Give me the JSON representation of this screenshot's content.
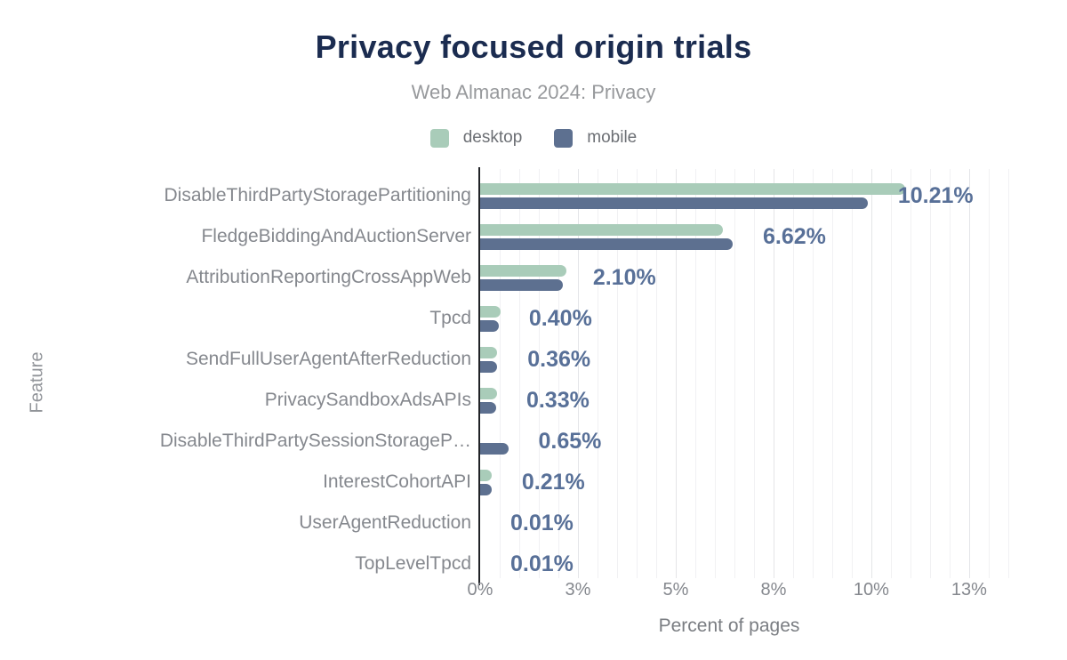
{
  "header": {
    "title": "Privacy focused origin trials",
    "subtitle": "Web Almanac 2024: Privacy"
  },
  "legend": [
    {
      "label": "desktop",
      "color": "#a9ccb9"
    },
    {
      "label": "mobile",
      "color": "#5d7090"
    }
  ],
  "colors": {
    "title": "#1b2c50",
    "subtitle": "#97999c",
    "desktop_bar": "#a9ccb9",
    "mobile_bar": "#5d7090",
    "value_label": "#587098",
    "category_label": "#85888e",
    "axis_line": "#212327",
    "gridline_minor": "#f1f1f3",
    "gridline_major": "#e4e5e8"
  },
  "chart_data": {
    "type": "bar",
    "orientation": "horizontal",
    "title": "Privacy focused origin trials",
    "subtitle": "Web Almanac 2024: Privacy",
    "xlabel": "Percent of pages",
    "ylabel": "Feature",
    "xlim": [
      0,
      14.2
    ],
    "grid": "vertical, minor every 0.52%, major every 2.6%",
    "legend_position": "top-center",
    "x_ticks": [
      {
        "value": 0,
        "label": "0%"
      },
      {
        "value": 2.6,
        "label": "3%"
      },
      {
        "value": 5.2,
        "label": "5%"
      },
      {
        "value": 7.8,
        "label": "8%"
      },
      {
        "value": 10.4,
        "label": "10%"
      },
      {
        "value": 13,
        "label": "13%"
      }
    ],
    "categories": [
      "DisableThirdPartyStoragePartitioning",
      "FledgeBiddingAndAuctionServer",
      "AttributionReportingCrossAppWeb",
      "Tpcd",
      "SendFullUserAgentAfterReduction",
      "PrivacySandboxAdsAPIs",
      "DisableThirdPartySessionStorageP…",
      "InterestCohortAPI",
      "UserAgentReduction",
      "TopLevelTpcd"
    ],
    "series": [
      {
        "name": "desktop",
        "color": "#a9ccb9",
        "values": [
          11.2,
          6.35,
          2.2,
          0.45,
          0.36,
          0.35,
          0,
          0.22,
          0.01,
          0.01
        ]
      },
      {
        "name": "mobile",
        "color": "#5d7090",
        "values": [
          10.21,
          6.62,
          2.1,
          0.4,
          0.36,
          0.33,
          0.65,
          0.21,
          0.01,
          0.01
        ]
      }
    ],
    "value_labels": [
      "10.21%",
      "6.62%",
      "2.10%",
      "0.40%",
      "0.36%",
      "0.33%",
      "0.65%",
      "0.21%",
      "0.01%",
      "0.01%"
    ]
  }
}
